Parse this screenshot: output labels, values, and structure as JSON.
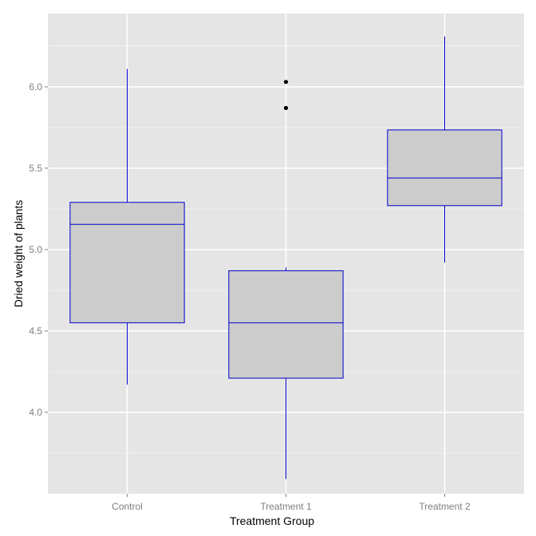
{
  "chart_data": {
    "type": "boxplot",
    "title": "",
    "xlabel": "Treatment Group",
    "ylabel": "Dried weight of plants",
    "categories": [
      "Control",
      "Treatment 1",
      "Treatment 2"
    ],
    "yticks": [
      4.0,
      4.5,
      5.0,
      5.5,
      6.0
    ],
    "ytick_labels": [
      "4.0",
      "4.5",
      "5.0",
      "5.5",
      "6.0"
    ],
    "ylim": [
      3.5,
      6.45
    ],
    "grid": true,
    "boxes": [
      {
        "category": "Control",
        "whisker_low": 4.17,
        "q1": 4.55,
        "median": 5.155,
        "q3": 5.29,
        "whisker_high": 6.11,
        "outliers": []
      },
      {
        "category": "Treatment 1",
        "whisker_low": 3.59,
        "q1": 4.21,
        "median": 4.55,
        "q3": 4.87,
        "whisker_high": 4.89,
        "outliers": [
          6.03,
          5.87
        ]
      },
      {
        "category": "Treatment 2",
        "whisker_low": 4.92,
        "q1": 5.27,
        "median": 5.44,
        "q3": 5.735,
        "whisker_high": 6.31,
        "outliers": []
      }
    ],
    "colors": {
      "panel_background": "#e5e5e5",
      "grid_major": "#ffffff",
      "grid_minor": "#f2f2f2",
      "box_fill": "#cccccc",
      "box_line": "#0000cc",
      "outlier": "#000000"
    }
  }
}
